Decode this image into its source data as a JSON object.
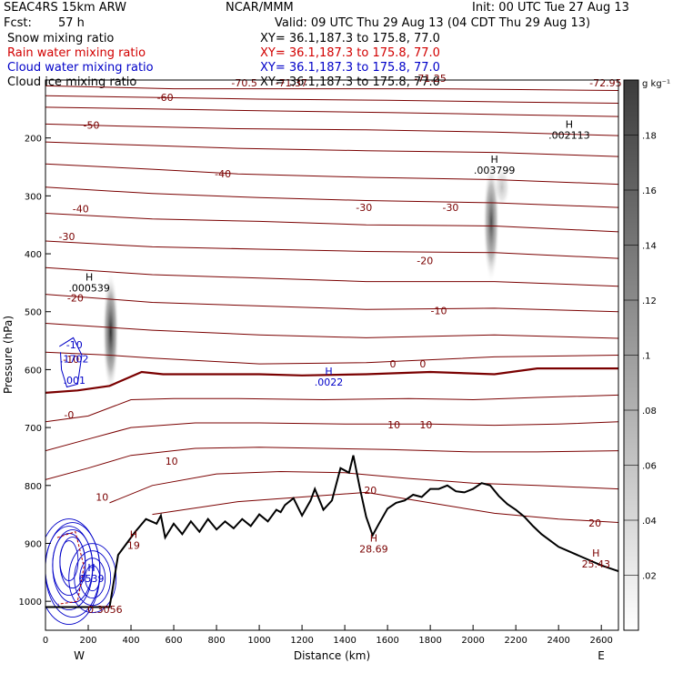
{
  "header": {
    "model": "SEAC4RS 15km ARW",
    "center": "NCAR/MMM",
    "init": "Init: 00 UTC Tue 27 Aug 13",
    "fcst_label": "Fcst:",
    "fcst_value": "57 h",
    "valid": "Valid: 09 UTC Thu 29 Aug 13 (04 CDT Thu 29 Aug 13)"
  },
  "fields": [
    {
      "name": "Snow mixing ratio",
      "xy": "XY=  36.1,187.3 to 175.8, 77.0",
      "color": "#000000"
    },
    {
      "name": "Rain water mixing ratio",
      "xy": "XY=  36.1,187.3 to 175.8, 77.0",
      "color": "#d20000"
    },
    {
      "name": "Cloud water mixing ratio",
      "xy": "XY=  36.1,187.3 to 175.8, 77.0",
      "color": "#0000c8"
    },
    {
      "name": "Cloud ice mixing ratio",
      "xy": "XY=  36.1,187.3 to 175.8, 77.0",
      "color": "#000000"
    }
  ],
  "colors": {
    "temperature": "#7a0000",
    "terrain": "#000000",
    "rain": "#b40000",
    "cloud": "#0000c8"
  },
  "chart_data": {
    "type": "cross-section",
    "xlabel": "Distance (km)",
    "ylabel": "Pressure (hPa)",
    "xlim": [
      0,
      2680
    ],
    "ylim": [
      1050,
      100
    ],
    "x_ticks": [
      0,
      200,
      400,
      600,
      800,
      1000,
      1200,
      1400,
      1600,
      1800,
      2000,
      2200,
      2400,
      2600
    ],
    "y_ticks": [
      200,
      300,
      400,
      500,
      600,
      700,
      800,
      900,
      1000
    ],
    "x_end_labels": {
      "left": "W",
      "right": "E"
    },
    "colorbar": {
      "unit": "g kg⁻¹",
      "ticks": [
        ".02",
        ".04",
        ".06",
        ".08",
        ".1",
        ".12",
        ".14",
        ".16",
        ".18"
      ],
      "max": 0.2
    },
    "temperature_contour_labels": [
      {
        "text": "-70.5",
        "x": 930,
        "p": 105
      },
      {
        "text": "-71.37",
        "x": 1150,
        "p": 105
      },
      {
        "text": "-71.25",
        "x": 1800,
        "p": 97
      },
      {
        "text": "-72.95",
        "x": 2620,
        "p": 105
      },
      {
        "text": "-60",
        "x": 560,
        "p": 130
      },
      {
        "text": "-50",
        "x": 215,
        "p": 178
      },
      {
        "text": "-40",
        "x": 830,
        "p": 262
      },
      {
        "text": "-40",
        "x": 165,
        "p": 322
      },
      {
        "text": "-30",
        "x": 1490,
        "p": 320
      },
      {
        "text": "-30",
        "x": 1895,
        "p": 320
      },
      {
        "text": "-30",
        "x": 100,
        "p": 370
      },
      {
        "text": "-20",
        "x": 1775,
        "p": 412
      },
      {
        "text": "-20",
        "x": 140,
        "p": 476
      },
      {
        "text": "-10",
        "x": 1840,
        "p": 498
      },
      {
        "text": "-10",
        "x": 120,
        "p": 582
      },
      {
        "text": "0",
        "x": 1625,
        "p": 590
      },
      {
        "text": "0",
        "x": 1765,
        "p": 590
      },
      {
        "text": "-0",
        "x": 110,
        "p": 678
      },
      {
        "text": "10",
        "x": 1630,
        "p": 695
      },
      {
        "text": "10",
        "x": 1780,
        "p": 695
      },
      {
        "text": "10",
        "x": 590,
        "p": 758
      },
      {
        "text": "10",
        "x": 265,
        "p": 820
      },
      {
        "text": "20",
        "x": 1520,
        "p": 808
      },
      {
        "text": "20",
        "x": 2570,
        "p": 865
      }
    ],
    "extrema": [
      {
        "label": "H",
        "value": ".002113",
        "x": 2450,
        "p": 192,
        "color": "#000000"
      },
      {
        "label": "H",
        "value": ".003799",
        "x": 2100,
        "p": 252,
        "color": "#000000"
      },
      {
        "label": "H",
        "value": ".000539",
        "x": 205,
        "p": 456,
        "color": "#000000"
      },
      {
        "label": "H",
        "value": ".0022",
        "x": 1325,
        "p": 618,
        "color": "#0000c8"
      },
      {
        "label": "H",
        "value": "28.69",
        "x": 1535,
        "p": 906,
        "color": "#7a0000"
      },
      {
        "label": "H",
        "value": "25.43",
        "x": 2575,
        "p": 932,
        "color": "#7a0000"
      },
      {
        "label": "H",
        "value": "19",
        "x": 412,
        "p": 900,
        "color": "#7a0000"
      },
      {
        "label": "H",
        "value": "6539",
        "x": 215,
        "p": 957,
        "color": "#0000c8"
      },
      {
        "label": "",
        "value": ".1702",
        "x": 135,
        "p": 578,
        "color": "#0000c8"
      },
      {
        "label": "",
        "value": ".001",
        "x": 135,
        "p": 615,
        "color": "#0000c8"
      },
      {
        "label": "",
        "value": "-10",
        "x": 135,
        "p": 554,
        "color": "#0000c8"
      },
      {
        "label": "",
        "value": "0.3056",
        "x": 278,
        "p": 1011,
        "color": "#7a0000"
      }
    ],
    "temperature_isotherms": [
      {
        "value": -70,
        "points": [
          [
            0,
            98
          ],
          [
            900,
            98
          ],
          [
            1400,
            97
          ],
          [
            2000,
            98
          ],
          [
            2680,
            100
          ]
        ]
      },
      {
        "value": -65,
        "points": [
          [
            0,
            110
          ],
          [
            600,
            115
          ],
          [
            1200,
            115
          ],
          [
            1800,
            115
          ],
          [
            2680,
            118
          ]
        ]
      },
      {
        "value": -60,
        "points": [
          [
            0,
            127
          ],
          [
            500,
            130
          ],
          [
            1000,
            133
          ],
          [
            1600,
            135
          ],
          [
            2200,
            138
          ],
          [
            2680,
            140
          ]
        ]
      },
      {
        "value": -55,
        "points": [
          [
            0,
            147
          ],
          [
            500,
            150
          ],
          [
            1000,
            153
          ],
          [
            1600,
            156
          ],
          [
            2200,
            160
          ],
          [
            2680,
            163
          ]
        ]
      },
      {
        "value": -50,
        "points": [
          [
            0,
            176
          ],
          [
            400,
            180
          ],
          [
            900,
            184
          ],
          [
            1500,
            186
          ],
          [
            2100,
            190
          ],
          [
            2680,
            196
          ]
        ]
      },
      {
        "value": -45,
        "points": [
          [
            0,
            207
          ],
          [
            400,
            212
          ],
          [
            900,
            218
          ],
          [
            1500,
            222
          ],
          [
            2100,
            225
          ],
          [
            2680,
            232
          ]
        ]
      },
      {
        "value": -40,
        "points": [
          [
            0,
            245
          ],
          [
            500,
            254
          ],
          [
            900,
            262
          ],
          [
            1500,
            268
          ],
          [
            2100,
            272
          ],
          [
            2680,
            280
          ]
        ]
      },
      {
        "value": -35,
        "points": [
          [
            0,
            285
          ],
          [
            500,
            296
          ],
          [
            1000,
            303
          ],
          [
            1500,
            308
          ],
          [
            2100,
            312
          ],
          [
            2680,
            320
          ]
        ]
      },
      {
        "value": -30,
        "points": [
          [
            0,
            330
          ],
          [
            500,
            340
          ],
          [
            1000,
            344
          ],
          [
            1500,
            350
          ],
          [
            2100,
            352
          ],
          [
            2680,
            362
          ]
        ]
      },
      {
        "value": -25,
        "points": [
          [
            0,
            378
          ],
          [
            500,
            388
          ],
          [
            1000,
            392
          ],
          [
            1500,
            396
          ],
          [
            2100,
            398
          ],
          [
            2680,
            408
          ]
        ]
      },
      {
        "value": -20,
        "points": [
          [
            0,
            424
          ],
          [
            500,
            436
          ],
          [
            1000,
            442
          ],
          [
            1500,
            448
          ],
          [
            2100,
            448
          ],
          [
            2680,
            456
          ]
        ]
      },
      {
        "value": -15,
        "points": [
          [
            0,
            470
          ],
          [
            500,
            484
          ],
          [
            1000,
            490
          ],
          [
            1500,
            496
          ],
          [
            2100,
            494
          ],
          [
            2680,
            500
          ]
        ]
      },
      {
        "value": -10,
        "points": [
          [
            0,
            520
          ],
          [
            500,
            532
          ],
          [
            1000,
            540
          ],
          [
            1500,
            545
          ],
          [
            2100,
            540
          ],
          [
            2680,
            546
          ]
        ]
      },
      {
        "value": -5,
        "points": [
          [
            0,
            570
          ],
          [
            300,
            575
          ],
          [
            500,
            580
          ],
          [
            1000,
            590
          ],
          [
            1500,
            588
          ],
          [
            2100,
            578
          ],
          [
            2680,
            575
          ]
        ]
      },
      {
        "value": 0,
        "points": [
          [
            0,
            640
          ],
          [
            150,
            636
          ],
          [
            300,
            628
          ],
          [
            450,
            604
          ],
          [
            550,
            608
          ],
          [
            700,
            608
          ],
          [
            1000,
            608
          ],
          [
            1200,
            610
          ],
          [
            1500,
            608
          ],
          [
            1800,
            604
          ],
          [
            2100,
            608
          ],
          [
            2300,
            598
          ],
          [
            2680,
            598
          ]
        ]
      },
      {
        "value": 5,
        "points": [
          [
            0,
            690
          ],
          [
            200,
            680
          ],
          [
            400,
            652
          ],
          [
            600,
            650
          ],
          [
            900,
            650
          ],
          [
            1300,
            652
          ],
          [
            1700,
            650
          ],
          [
            2000,
            652
          ],
          [
            2300,
            648
          ],
          [
            2680,
            644
          ]
        ]
      },
      {
        "value": 10,
        "points": [
          [
            0,
            740
          ],
          [
            200,
            720
          ],
          [
            400,
            700
          ],
          [
            700,
            692
          ],
          [
            1000,
            692
          ],
          [
            1400,
            694
          ],
          [
            1800,
            694
          ],
          [
            2100,
            696
          ],
          [
            2400,
            694
          ],
          [
            2680,
            690
          ]
        ]
      },
      {
        "value": 15,
        "points": [
          [
            0,
            790
          ],
          [
            200,
            770
          ],
          [
            400,
            748
          ],
          [
            700,
            736
          ],
          [
            1000,
            734
          ],
          [
            1300,
            736
          ],
          [
            1600,
            738
          ],
          [
            2000,
            742
          ],
          [
            2300,
            742
          ],
          [
            2680,
            740
          ]
        ]
      },
      {
        "value": 20,
        "points": [
          [
            300,
            830
          ],
          [
            500,
            800
          ],
          [
            800,
            780
          ],
          [
            1100,
            776
          ],
          [
            1400,
            778
          ],
          [
            1700,
            788
          ],
          [
            2000,
            796
          ],
          [
            2300,
            800
          ],
          [
            2680,
            806
          ]
        ]
      },
      {
        "value": 25,
        "points": [
          [
            500,
            850
          ],
          [
            900,
            828
          ],
          [
            1200,
            820
          ],
          [
            1500,
            812
          ],
          [
            1800,
            830
          ],
          [
            2100,
            848
          ],
          [
            2400,
            858
          ],
          [
            2680,
            864
          ]
        ]
      }
    ],
    "terrain": [
      [
        0,
        1010
      ],
      [
        300,
        1010
      ],
      [
        340,
        920
      ],
      [
        380,
        900
      ],
      [
        420,
        880
      ],
      [
        470,
        858
      ],
      [
        520,
        866
      ],
      [
        540,
        852
      ],
      [
        560,
        890
      ],
      [
        600,
        866
      ],
      [
        640,
        884
      ],
      [
        680,
        862
      ],
      [
        720,
        880
      ],
      [
        760,
        858
      ],
      [
        800,
        876
      ],
      [
        840,
        862
      ],
      [
        880,
        874
      ],
      [
        920,
        858
      ],
      [
        960,
        870
      ],
      [
        1000,
        850
      ],
      [
        1040,
        862
      ],
      [
        1080,
        842
      ],
      [
        1100,
        846
      ],
      [
        1120,
        834
      ],
      [
        1160,
        822
      ],
      [
        1200,
        852
      ],
      [
        1240,
        826
      ],
      [
        1260,
        806
      ],
      [
        1300,
        842
      ],
      [
        1340,
        826
      ],
      [
        1380,
        770
      ],
      [
        1420,
        778
      ],
      [
        1440,
        748
      ],
      [
        1470,
        804
      ],
      [
        1500,
        854
      ],
      [
        1530,
        886
      ],
      [
        1560,
        866
      ],
      [
        1600,
        840
      ],
      [
        1640,
        830
      ],
      [
        1680,
        826
      ],
      [
        1720,
        816
      ],
      [
        1760,
        820
      ],
      [
        1800,
        806
      ],
      [
        1840,
        806
      ],
      [
        1880,
        800
      ],
      [
        1920,
        810
      ],
      [
        1960,
        812
      ],
      [
        2000,
        806
      ],
      [
        2040,
        796
      ],
      [
        2080,
        800
      ],
      [
        2120,
        818
      ],
      [
        2160,
        832
      ],
      [
        2200,
        842
      ],
      [
        2240,
        854
      ],
      [
        2280,
        870
      ],
      [
        2320,
        884
      ],
      [
        2400,
        906
      ],
      [
        2500,
        922
      ],
      [
        2600,
        938
      ],
      [
        2680,
        948
      ]
    ],
    "ice_plumes": [
      {
        "x_center": 305,
        "p_top": 430,
        "p_bottom": 640,
        "max": 0.2
      },
      {
        "x_center": 2085,
        "p_top": 240,
        "p_bottom": 450,
        "max": 0.17
      },
      {
        "x_center": 2135,
        "p_top": 250,
        "p_bottom": 320,
        "max": 0.06
      }
    ]
  }
}
